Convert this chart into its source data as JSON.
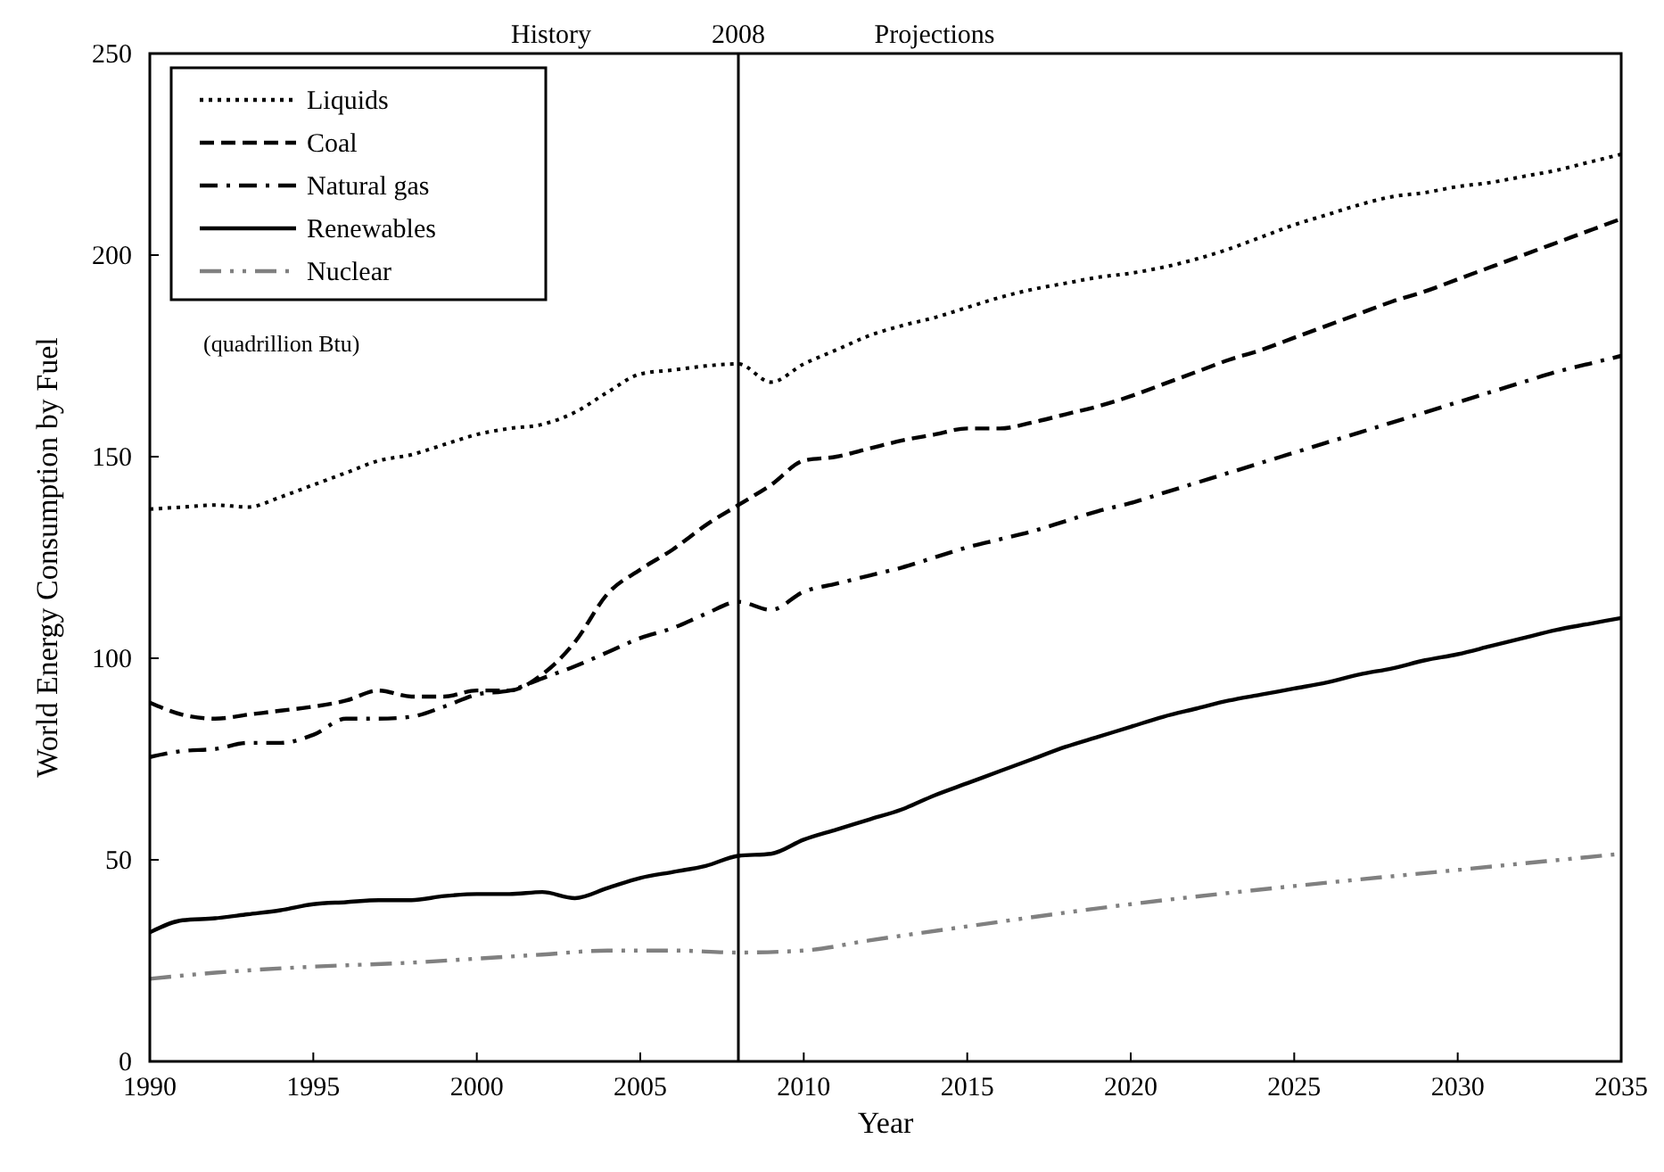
{
  "chart_data": {
    "type": "line",
    "xlabel": "Year",
    "ylabel": "World Energy Consumption by Fuel",
    "annotations": [
      "History",
      "Projections",
      "(quadrillion Btu)"
    ],
    "x": [
      1990,
      1991,
      1992,
      1993,
      1994,
      1995,
      1996,
      1997,
      1998,
      1999,
      2000,
      2001,
      2002,
      2003,
      2004,
      2005,
      2006,
      2007,
      2008,
      2009,
      2010,
      2011,
      2012,
      2013,
      2014,
      2015,
      2016,
      2017,
      2018,
      2019,
      2020,
      2021,
      2022,
      2023,
      2024,
      2025,
      2026,
      2027,
      2028,
      2029,
      2030,
      2031,
      2032,
      2033,
      2034,
      2035
    ],
    "series": [
      {
        "name": "Liquids",
        "color": "#000000",
        "line_style": "dotted",
        "values": [
          137,
          137.5,
          138,
          137.5,
          140,
          143,
          146,
          149,
          150.5,
          153,
          155.5,
          157,
          158,
          161,
          166,
          170.5,
          171.5,
          172.5,
          173,
          168.5,
          173,
          176.5,
          180,
          182.5,
          184.5,
          187,
          189.5,
          191.5,
          193,
          194.5,
          195.5,
          197,
          199,
          201.5,
          204.5,
          207.5,
          210,
          212.5,
          214.5,
          215.5,
          217,
          218,
          219.5,
          221,
          223,
          225
        ]
      },
      {
        "name": "Coal",
        "color": "#000000",
        "line_style": "dashed",
        "values": [
          89,
          86,
          85,
          86,
          87,
          88,
          89.5,
          92,
          90.5,
          90.5,
          92,
          92,
          96,
          104,
          116,
          122,
          127,
          133,
          138,
          143,
          149,
          150,
          152,
          154,
          155.5,
          157,
          157,
          158.5,
          160.5,
          162.5,
          165,
          168,
          171,
          174,
          176.5,
          179.5,
          182.5,
          185.5,
          188.5,
          191,
          194,
          197,
          200,
          203,
          206,
          209
        ]
      },
      {
        "name": "Natural gas",
        "color": "#000000",
        "line_style": "dashdot",
        "values": [
          75.5,
          77,
          77.5,
          79,
          79,
          81,
          85,
          85,
          85.5,
          88,
          91,
          92,
          95,
          98,
          101.5,
          105,
          107.5,
          111,
          114,
          112,
          116.5,
          118.5,
          120.5,
          122.5,
          125,
          127.5,
          129.5,
          131.5,
          134,
          136.5,
          138.5,
          141,
          143.5,
          146,
          148.5,
          151,
          153.5,
          156,
          158.5,
          161,
          163.5,
          166,
          168.5,
          171,
          173,
          175
        ]
      },
      {
        "name": "Renewables",
        "color": "#000000",
        "line_style": "solid",
        "values": [
          32,
          35,
          35.5,
          36.5,
          37.5,
          39,
          39.5,
          40,
          40,
          41,
          41.5,
          41.5,
          42,
          40.5,
          43,
          45.5,
          47,
          48.5,
          51,
          51.5,
          55,
          57.5,
          60,
          62.5,
          66,
          69,
          72,
          75,
          78,
          80.5,
          83,
          85.5,
          87.5,
          89.5,
          91,
          92.5,
          94,
          96,
          97.5,
          99.5,
          101,
          103,
          105,
          107,
          108.5,
          110
        ]
      },
      {
        "name": "Nuclear",
        "color": "#808080",
        "line_style": "dashdotdot",
        "x": [
          1990,
          1992,
          1995,
          1998,
          2000,
          2002,
          2004,
          2006,
          2008,
          2010,
          2012,
          2015,
          2020,
          2025,
          2030,
          2035
        ],
        "values": [
          20.5,
          22,
          23.5,
          24.5,
          25.5,
          26.5,
          27.5,
          27.5,
          27,
          27.5,
          30,
          33.5,
          39,
          43.5,
          47.5,
          51.5
        ]
      }
    ],
    "xlim": [
      1990,
      2035
    ],
    "xticks": [
      1990,
      1995,
      2000,
      2005,
      2010,
      2015,
      2020,
      2025,
      2030,
      2035
    ],
    "ylim": [
      0,
      250
    ],
    "yticks": [
      0,
      50,
      100,
      150,
      200,
      250
    ],
    "ref_lines": [
      {
        "axis": "x",
        "value": 2008,
        "label": "2008",
        "color": "#000000"
      }
    ],
    "legend": "top left",
    "grid": false,
    "marker": "none"
  }
}
